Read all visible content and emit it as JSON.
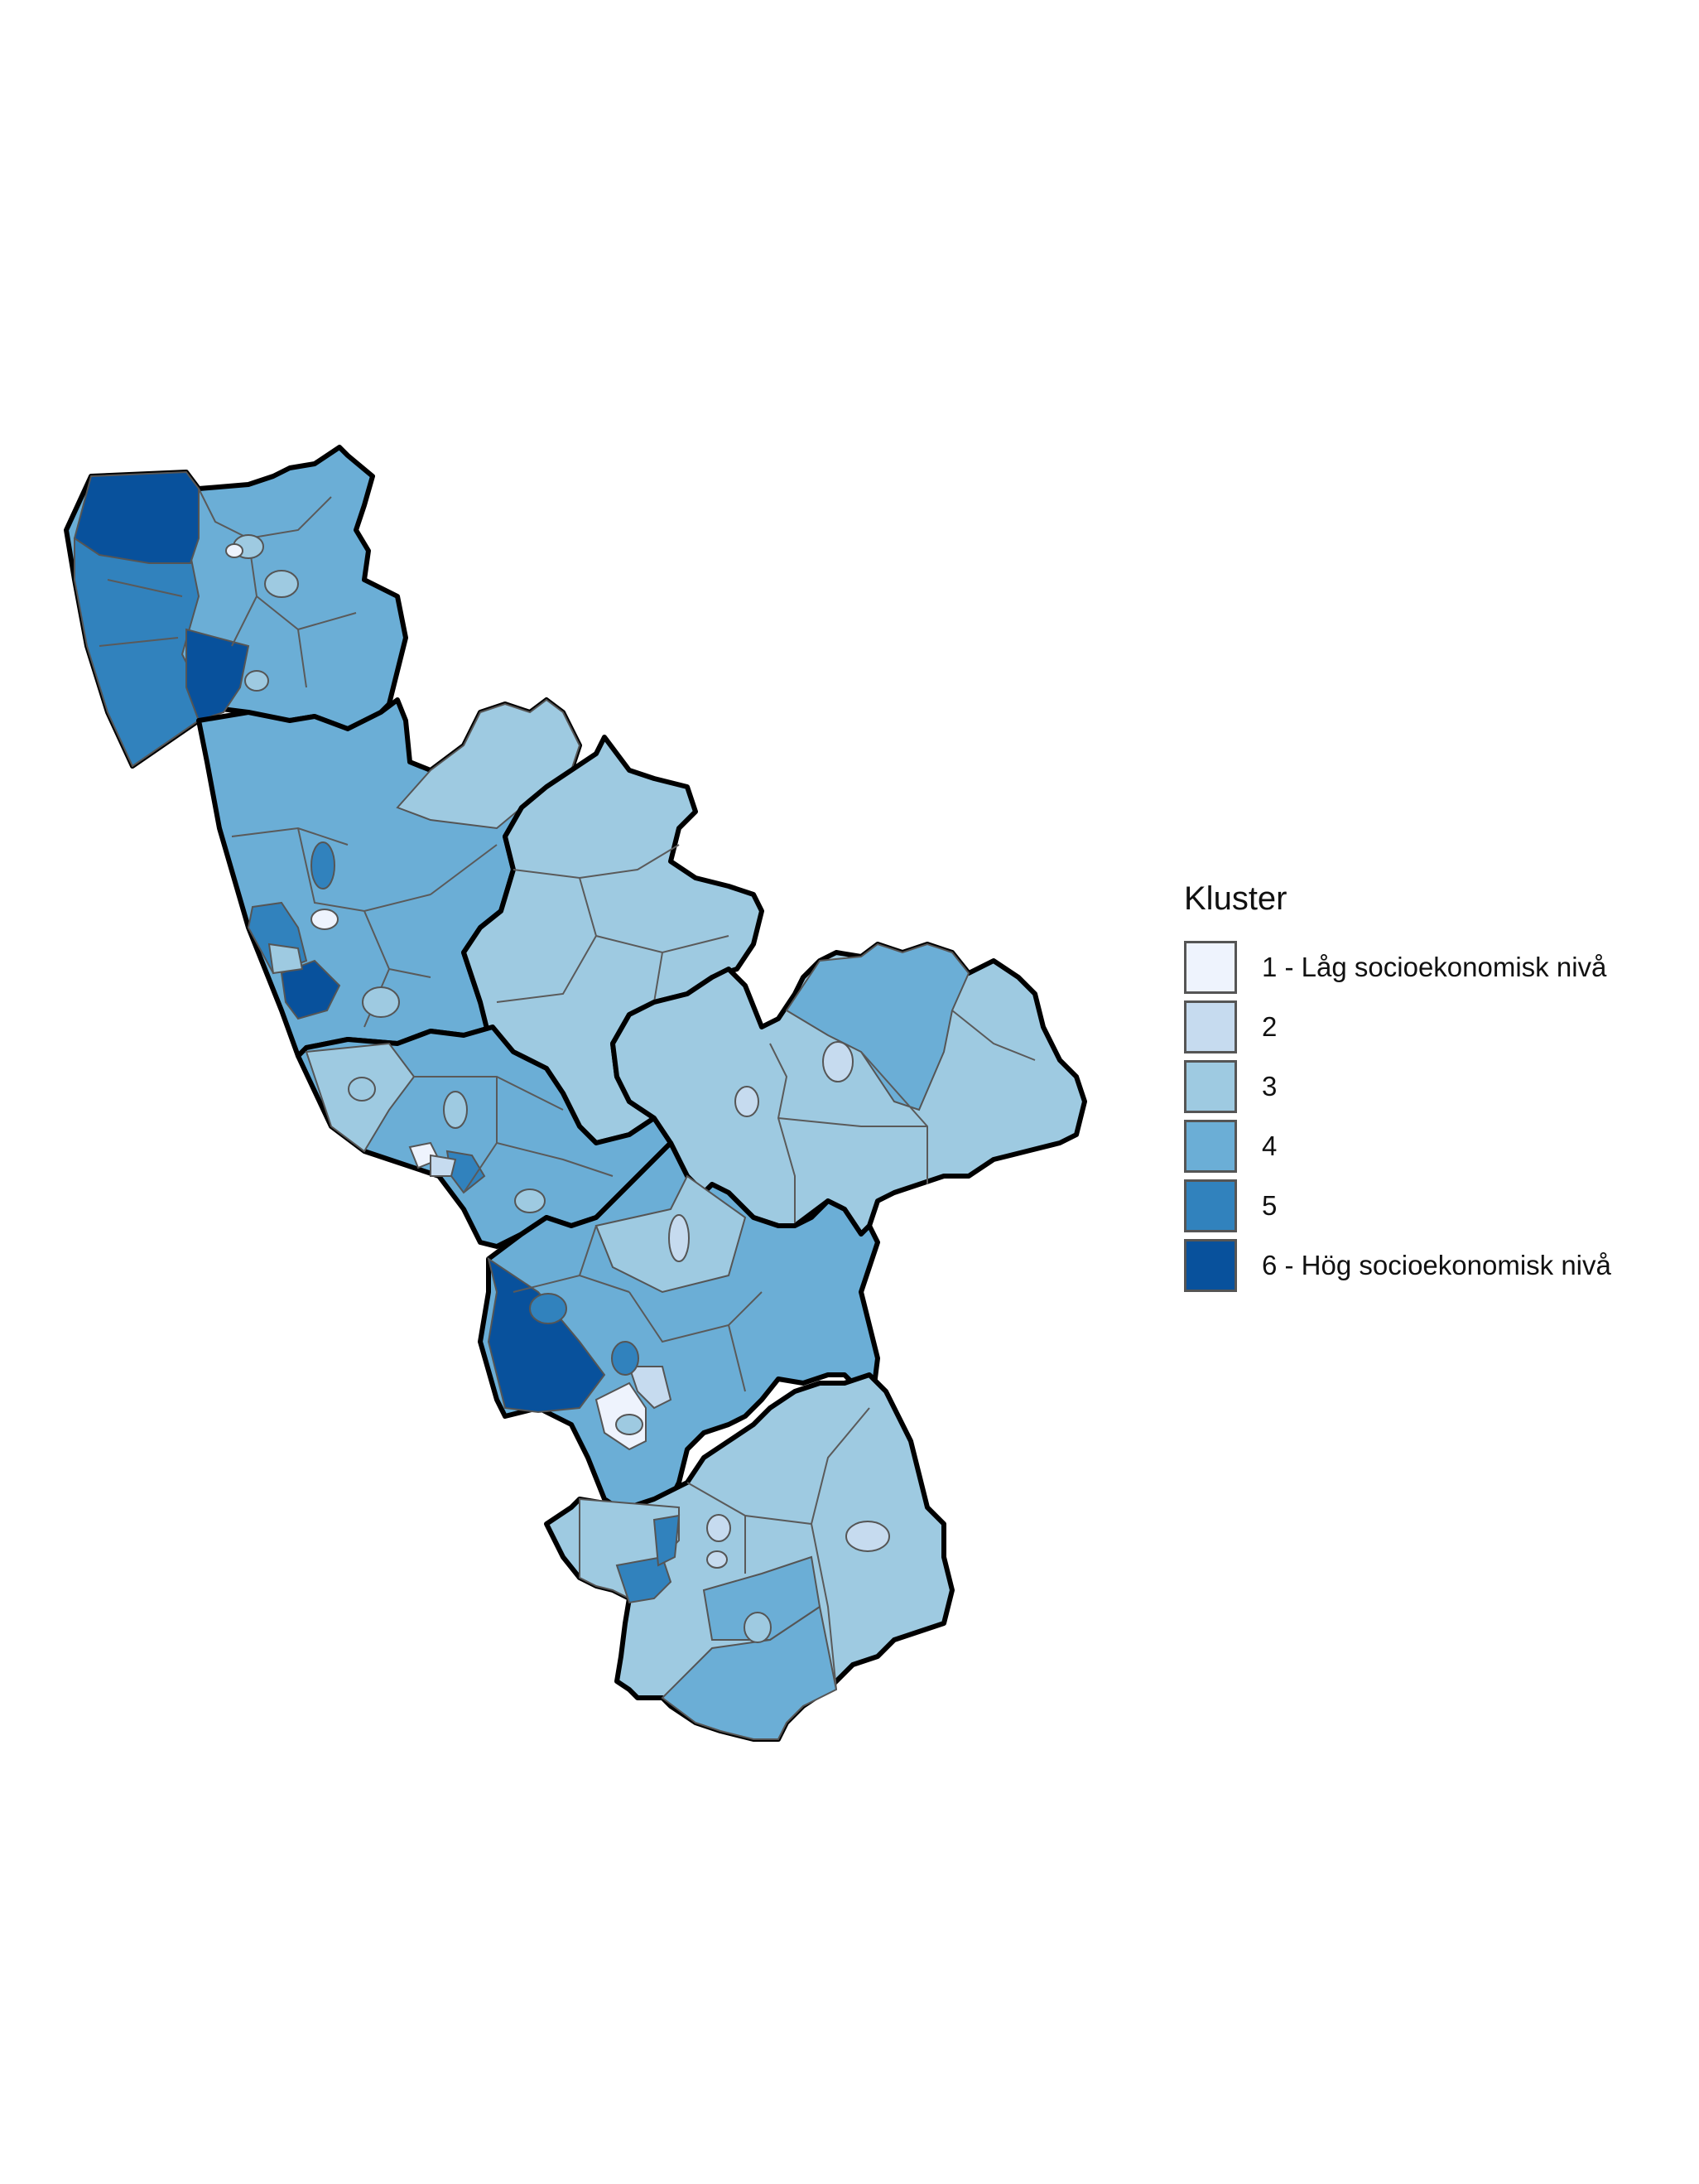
{
  "legend": {
    "title": "Kluster",
    "items": [
      {
        "label": "1 - Låg socioekonomisk nivå",
        "color": "#eef3fd"
      },
      {
        "label": "2",
        "color": "#c6dbef"
      },
      {
        "label": "3",
        "color": "#9ecae1"
      },
      {
        "label": "4",
        "color": "#6baed6"
      },
      {
        "label": "5",
        "color": "#3182bd"
      },
      {
        "label": "6 - Hög socioekonomisk nivå",
        "color": "#08519c"
      }
    ]
  }
}
